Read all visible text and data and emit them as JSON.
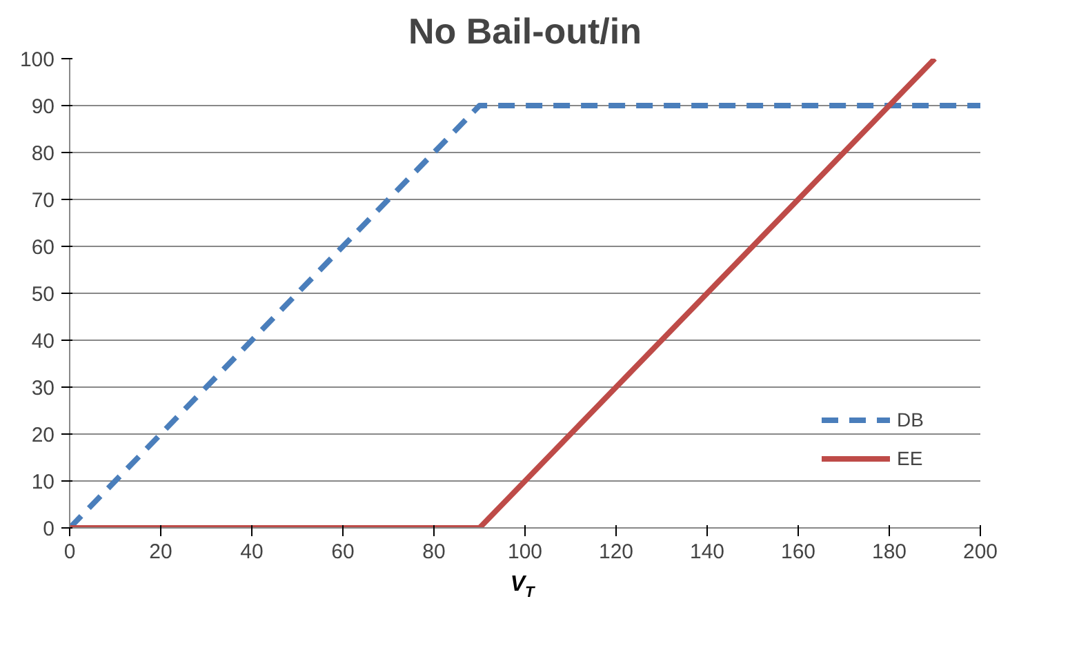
{
  "chart_data": {
    "type": "line",
    "title": "No Bail-out/in",
    "xlabel": "V$_{T}$",
    "xlim": [
      0,
      200
    ],
    "xticks": [
      0,
      20,
      40,
      60,
      80,
      100,
      120,
      140,
      160,
      180,
      200
    ],
    "ylim": [
      0,
      100
    ],
    "yticks": [
      0,
      10,
      20,
      30,
      40,
      50,
      60,
      70,
      80,
      90,
      100
    ],
    "grid": "y",
    "legend": "bottom right",
    "marker": "none",
    "series": [
      {
        "name": "DB",
        "color": "#4a7ebb",
        "x": [
          0,
          90,
          200
        ],
        "values": [
          0,
          90,
          90
        ],
        "line_style": "dashed"
      },
      {
        "name": "EE",
        "color": "#be4b48",
        "x": [
          0,
          90,
          190
        ],
        "values": [
          0,
          0,
          100
        ],
        "line_style": "solid"
      }
    ]
  }
}
